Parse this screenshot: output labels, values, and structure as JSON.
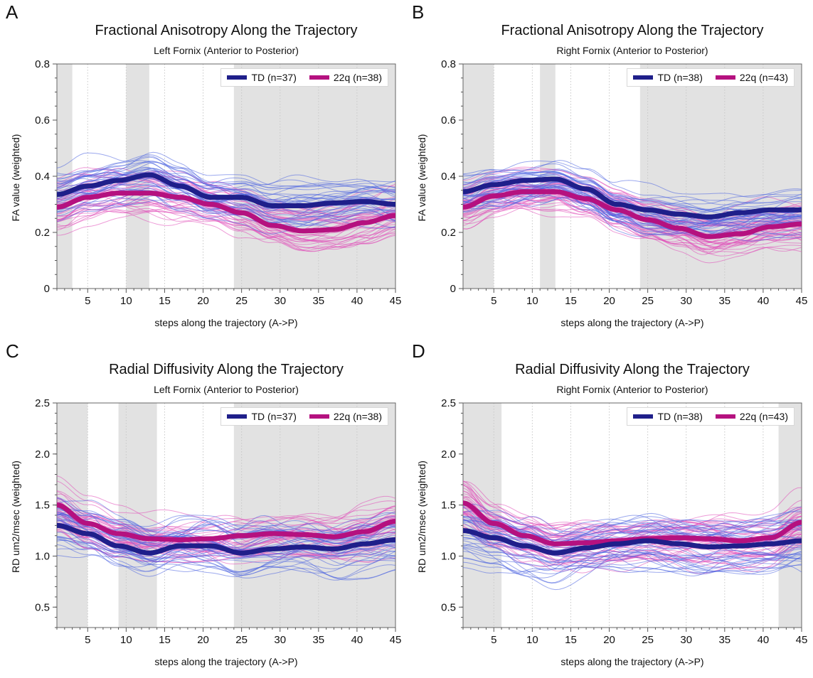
{
  "colors": {
    "td": "#1f1f8a",
    "q22": "#b5117f",
    "td_thin": "#4a63e0",
    "q22_thin": "#e04ab8",
    "shade": "#e2e2e2"
  },
  "chart_data": [
    {
      "panel": "A",
      "type": "line",
      "title": "Fractional Anisotropy Along the Trajectory",
      "subtitle": "Left Fornix (Anterior to Posterior)",
      "xlabel": "steps along the trajectory (A->P)",
      "ylabel": "FA value (weighted)",
      "xlim": [
        1,
        45
      ],
      "ylim": [
        0,
        0.8
      ],
      "xticks": [
        5,
        10,
        15,
        20,
        25,
        30,
        35,
        40,
        45
      ],
      "yticks": [
        0,
        0.2,
        0.4,
        0.6,
        0.8
      ],
      "yticklabels": [
        "0",
        "0.2",
        "0.4",
        "0.6",
        "0.8"
      ],
      "shaded_ranges": [
        [
          1,
          3
        ],
        [
          10,
          13
        ],
        [
          24,
          45
        ]
      ],
      "legend": [
        "TD (n=37)",
        "22q (n=38)"
      ],
      "subject_counts": {
        "td": 37,
        "q22": 38
      },
      "subject_spread": {
        "td": 0.07,
        "q22": 0.07
      },
      "series": [
        {
          "name": "TD (n=37)",
          "x": [
            1,
            5,
            9,
            13,
            17,
            21,
            25,
            29,
            33,
            37,
            41,
            45
          ],
          "values": [
            0.335,
            0.365,
            0.385,
            0.405,
            0.365,
            0.325,
            0.325,
            0.295,
            0.295,
            0.305,
            0.31,
            0.3
          ]
        },
        {
          "name": "22q (n=38)",
          "x": [
            1,
            5,
            9,
            13,
            17,
            21,
            25,
            29,
            33,
            37,
            41,
            45
          ],
          "values": [
            0.29,
            0.325,
            0.34,
            0.34,
            0.325,
            0.3,
            0.27,
            0.225,
            0.205,
            0.21,
            0.235,
            0.26
          ]
        }
      ]
    },
    {
      "panel": "B",
      "type": "line",
      "title": "Fractional Anisotropy Along the Trajectory",
      "subtitle": "Right Fornix (Anterior to Posterior)",
      "xlabel": "steps along the trajectory (A->P)",
      "ylabel": "FA value (weighted)",
      "xlim": [
        1,
        45
      ],
      "ylim": [
        0,
        0.8
      ],
      "xticks": [
        5,
        10,
        15,
        20,
        25,
        30,
        35,
        40,
        45
      ],
      "yticks": [
        0,
        0.2,
        0.4,
        0.6,
        0.8
      ],
      "yticklabels": [
        "0",
        "0.2",
        "0.4",
        "0.6",
        "0.8"
      ],
      "shaded_ranges": [
        [
          1,
          5
        ],
        [
          11,
          13
        ],
        [
          24,
          45
        ]
      ],
      "legend": [
        "TD (n=38)",
        "22q (n=43)"
      ],
      "subject_counts": {
        "td": 38,
        "q22": 43
      },
      "subject_spread": {
        "td": 0.07,
        "q22": 0.07
      },
      "series": [
        {
          "name": "TD (n=38)",
          "x": [
            1,
            5,
            9,
            13,
            17,
            21,
            25,
            29,
            33,
            37,
            41,
            45
          ],
          "values": [
            0.345,
            0.37,
            0.385,
            0.39,
            0.355,
            0.3,
            0.28,
            0.265,
            0.255,
            0.27,
            0.28,
            0.28
          ]
        },
        {
          "name": "22q (n=43)",
          "x": [
            1,
            5,
            9,
            13,
            17,
            21,
            25,
            29,
            33,
            37,
            41,
            45
          ],
          "values": [
            0.29,
            0.33,
            0.345,
            0.345,
            0.32,
            0.28,
            0.245,
            0.215,
            0.185,
            0.195,
            0.22,
            0.23
          ]
        }
      ]
    },
    {
      "panel": "C",
      "type": "line",
      "title": "Radial Diffusivity Along the Trajectory",
      "subtitle": "Left Fornix (Anterior to Posterior)",
      "xlabel": "steps along the trajectory (A->P)",
      "ylabel": "RD um2/msec (weighted)",
      "xlim": [
        1,
        45
      ],
      "ylim": [
        0.3,
        2.5
      ],
      "xticks": [
        5,
        10,
        15,
        20,
        25,
        30,
        35,
        40,
        45
      ],
      "yticks": [
        0.5,
        1.0,
        1.5,
        2.0,
        2.5
      ],
      "yticklabels": [
        "0.5",
        "1.0",
        "1.5",
        "2.0",
        "2.5"
      ],
      "shaded_ranges": [
        [
          1,
          5
        ],
        [
          9,
          14
        ],
        [
          24,
          45
        ]
      ],
      "legend": [
        "TD (n=37)",
        "22q (n=38)"
      ],
      "subject_counts": {
        "td": 37,
        "q22": 38
      },
      "subject_spread": {
        "td": 0.22,
        "q22": 0.22
      },
      "series": [
        {
          "name": "TD (n=37)",
          "x": [
            1,
            5,
            9,
            13,
            17,
            21,
            25,
            29,
            33,
            37,
            41,
            45
          ],
          "values": [
            1.3,
            1.22,
            1.1,
            1.03,
            1.1,
            1.1,
            1.03,
            1.07,
            1.09,
            1.07,
            1.12,
            1.16
          ]
        },
        {
          "name": "22q (n=38)",
          "x": [
            1,
            5,
            9,
            13,
            17,
            21,
            25,
            29,
            33,
            37,
            41,
            45
          ],
          "values": [
            1.5,
            1.32,
            1.22,
            1.17,
            1.16,
            1.17,
            1.2,
            1.22,
            1.21,
            1.19,
            1.24,
            1.34
          ]
        }
      ]
    },
    {
      "panel": "D",
      "type": "line",
      "title": "Radial Diffusivity Along the Trajectory",
      "subtitle": "Right Fornix (Anterior to Posterior)",
      "xlabel": "steps along the trajectory (A->P)",
      "ylabel": "RD um2/msec (weighted)",
      "xlim": [
        1,
        45
      ],
      "ylim": [
        0.3,
        2.5
      ],
      "xticks": [
        5,
        10,
        15,
        20,
        25,
        30,
        35,
        40,
        45
      ],
      "yticks": [
        0.5,
        1.0,
        1.5,
        2.0,
        2.5
      ],
      "yticklabels": [
        "0.5",
        "1.0",
        "1.5",
        "2.0",
        "2.5"
      ],
      "shaded_ranges": [
        [
          1,
          6
        ],
        [
          42,
          45
        ]
      ],
      "legend": [
        "TD (n=38)",
        "22q (n=43)"
      ],
      "subject_counts": {
        "td": 38,
        "q22": 43
      },
      "subject_spread": {
        "td": 0.22,
        "q22": 0.22
      },
      "series": [
        {
          "name": "TD (n=38)",
          "x": [
            1,
            5,
            9,
            13,
            17,
            21,
            25,
            29,
            33,
            37,
            41,
            45
          ],
          "values": [
            1.25,
            1.18,
            1.1,
            1.03,
            1.08,
            1.12,
            1.15,
            1.12,
            1.09,
            1.1,
            1.12,
            1.15
          ]
        },
        {
          "name": "22q (n=43)",
          "x": [
            1,
            5,
            9,
            13,
            17,
            21,
            25,
            29,
            33,
            37,
            41,
            45
          ],
          "values": [
            1.52,
            1.32,
            1.2,
            1.12,
            1.13,
            1.15,
            1.17,
            1.18,
            1.17,
            1.15,
            1.18,
            1.33
          ]
        }
      ]
    }
  ]
}
